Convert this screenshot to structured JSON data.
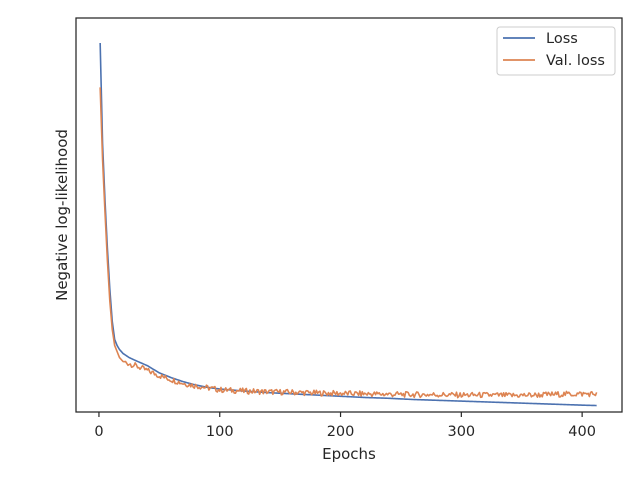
{
  "chart_data": {
    "type": "line",
    "title": "",
    "xlabel": "Epochs",
    "ylabel": "Negative log-likelihood",
    "xlim": [
      -19,
      433
    ],
    "ylim": [
      0.035,
      1.012
    ],
    "xticks": [
      0,
      100,
      200,
      300,
      400
    ],
    "yticks_visible": false,
    "grid": false,
    "legend_position": "top-right",
    "series": [
      {
        "name": "Loss",
        "color": "#4C72B0",
        "x": [
          1,
          3,
          5,
          7,
          9,
          11,
          13,
          15,
          17,
          20,
          25,
          30,
          40,
          50,
          60,
          70,
          80,
          90,
          100,
          120,
          140,
          160,
          180,
          200,
          220,
          240,
          260,
          280,
          300,
          320,
          340,
          360,
          380,
          400,
          412
        ],
        "y": [
          0.95,
          0.7,
          0.56,
          0.44,
          0.34,
          0.26,
          0.215,
          0.2,
          0.19,
          0.18,
          0.17,
          0.163,
          0.15,
          0.132,
          0.12,
          0.11,
          0.102,
          0.096,
          0.092,
          0.087,
          0.083,
          0.08,
          0.077,
          0.074,
          0.071,
          0.069,
          0.066,
          0.064,
          0.062,
          0.06,
          0.058,
          0.056,
          0.054,
          0.052,
          0.051
        ]
      },
      {
        "name": "Val. loss",
        "color": "#DD8452",
        "x": [
          1,
          3,
          5,
          7,
          9,
          11,
          13,
          15,
          17,
          20,
          25,
          30,
          40,
          50,
          60,
          70,
          80,
          90,
          100,
          120,
          140,
          160,
          180,
          200,
          220,
          240,
          260,
          280,
          300,
          320,
          340,
          360,
          380,
          400,
          412
        ],
        "y": [
          0.84,
          0.66,
          0.53,
          0.41,
          0.31,
          0.24,
          0.2,
          0.185,
          0.17,
          0.16,
          0.155,
          0.15,
          0.138,
          0.125,
          0.115,
          0.106,
          0.1,
          0.095,
          0.09,
          0.087,
          0.085,
          0.084,
          0.082,
          0.081,
          0.08,
          0.079,
          0.078,
          0.078,
          0.077,
          0.077,
          0.076,
          0.077,
          0.079,
          0.08,
          0.08
        ]
      }
    ]
  }
}
